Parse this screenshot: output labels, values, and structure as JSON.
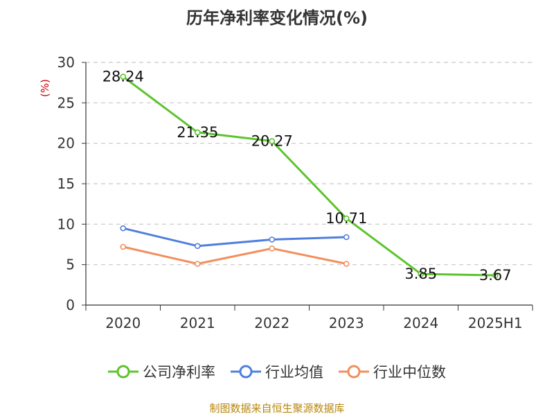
{
  "title": "历年净利率变化情况(%)",
  "source": "制图数据来自恒生聚源数据库",
  "chart_data": {
    "type": "line",
    "title": "历年净利率变化情况(%)",
    "ylabel": "(%)",
    "xlabel": "",
    "categories": [
      "2020",
      "2021",
      "2022",
      "2023",
      "2024",
      "2025H1"
    ],
    "ylim": [
      0,
      30
    ],
    "yticks": [
      0,
      5,
      10,
      15,
      20,
      25,
      30
    ],
    "grid": true,
    "legend_position": "bottom",
    "series": [
      {
        "name": "公司净利率",
        "color": "#5cc42c",
        "values": [
          28.24,
          21.35,
          20.27,
          10.71,
          3.85,
          3.67
        ],
        "labels": [
          "28.24",
          "21.35",
          "20.27",
          "10.71",
          "3.85",
          "3.67"
        ]
      },
      {
        "name": "行业均值",
        "color": "#4f7fdc",
        "values": [
          9.5,
          7.3,
          8.1,
          8.4,
          null,
          null
        ]
      },
      {
        "name": "行业中位数",
        "color": "#f28e5c",
        "values": [
          7.2,
          5.1,
          7.0,
          5.1,
          null,
          null
        ]
      }
    ]
  }
}
